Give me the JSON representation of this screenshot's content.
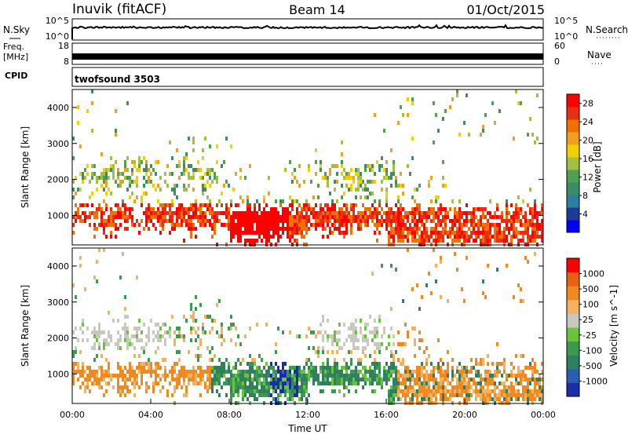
{
  "header": {
    "station": "Inuvik (fitACF)",
    "beam": "Beam 14",
    "date": "01/Oct/2015"
  },
  "noise_panel": {
    "left_label": "N.Sky",
    "right_label": "N.Search",
    "left_ticks": [
      "10^5",
      "10^0"
    ],
    "right_ticks": [
      "10^5",
      "10^0"
    ],
    "left_color": "#000000",
    "right_style": "dotted"
  },
  "freq_panel": {
    "left_label_1": "Freq.",
    "left_label_2": "[MHz]",
    "right_label": "Nave",
    "left_ticks": [
      "18",
      "8"
    ],
    "right_ticks": [
      "60",
      "0"
    ]
  },
  "cpid": {
    "label": "CPID",
    "value": "twofsound 3503"
  },
  "time_axis": {
    "ticks": [
      "00:00",
      "04:00",
      "08:00",
      "12:00",
      "16:00",
      "20:00",
      "00:00"
    ],
    "label": "Time UT"
  },
  "chart_data": [
    {
      "type": "heatmap",
      "parameter": "power",
      "xlabel": "Time UT",
      "ylabel": "Slant Range [km]",
      "x_range_hours": [
        0,
        24
      ],
      "ylim": [
        180,
        4500
      ],
      "y_ticks": [
        1000,
        2000,
        3000,
        4000
      ],
      "colorbar": {
        "label": "Power [dB]",
        "tick_labels": [
          "4",
          "8",
          "12",
          "16",
          "20",
          "24",
          "28"
        ],
        "range": [
          0,
          30
        ],
        "colors": [
          "#0000ff",
          "#1e3c96",
          "#2d7fa0",
          "#3c8c64",
          "#50a050",
          "#a0c040",
          "#f0d000",
          "#f0a020",
          "#f07000",
          "#e83010",
          "#ff0000"
        ]
      }
    },
    {
      "type": "heatmap",
      "parameter": "velocity",
      "xlabel": "Time UT",
      "ylabel": "Slant Range [km]",
      "x_range_hours": [
        0,
        24
      ],
      "ylim": [
        180,
        4500
      ],
      "y_ticks": [
        1000,
        2000,
        3000,
        4000
      ],
      "colorbar": {
        "label": "Velocity [m s^-1]",
        "tick_labels": [
          "1000",
          "500",
          "100",
          "25",
          "-25",
          "-100",
          "-500",
          "-1000"
        ],
        "colors": [
          "#1a2ea8",
          "#2c5db0",
          "#2f8060",
          "#3c9a50",
          "#6ac43a",
          "#c8c8c0",
          "#f5b060",
          "#f08a20",
          "#e86010",
          "#ff0000"
        ]
      }
    }
  ]
}
